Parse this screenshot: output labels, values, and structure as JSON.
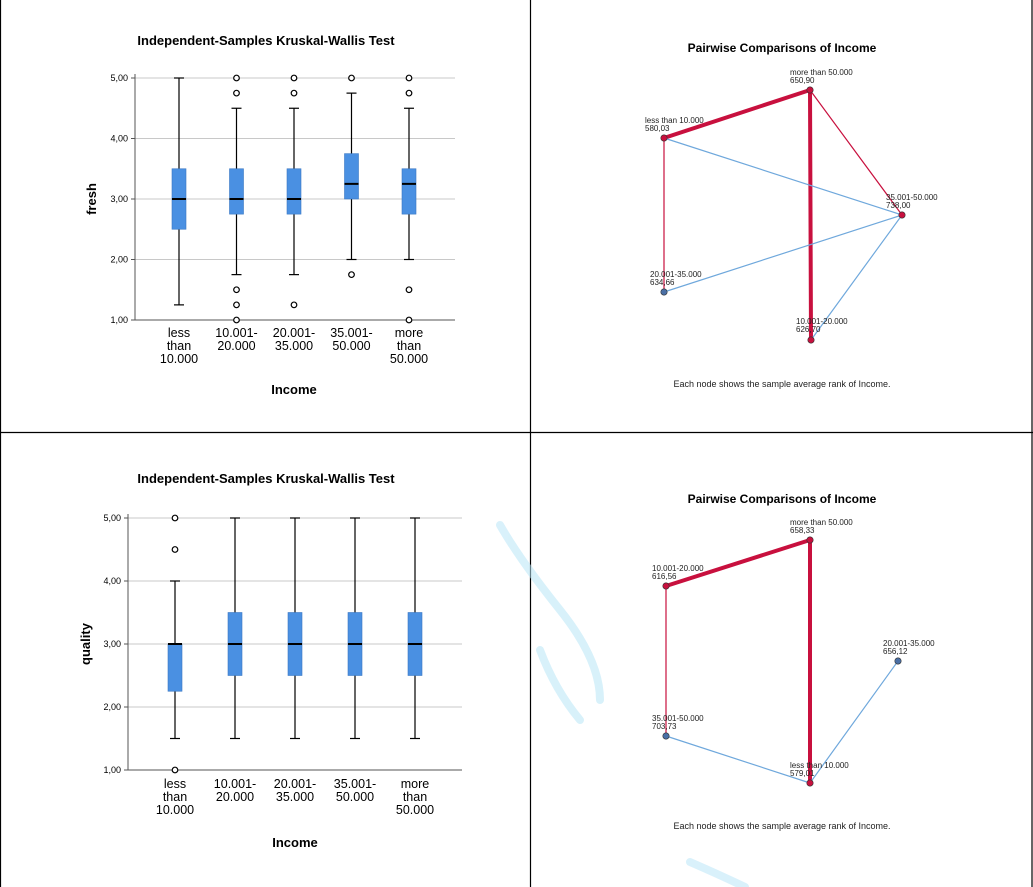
{
  "chart_data": [
    {
      "type": "boxplot",
      "title": "Independent-Samples Kruskal-Wallis Test",
      "xlabel": "Income",
      "ylabel": "fresh",
      "ylim": [
        1,
        5
      ],
      "yticks": [
        "1,00",
        "2,00",
        "3,00",
        "4,00",
        "5,00"
      ],
      "grid": true,
      "box_color": "#4a90e2",
      "categories": [
        [
          "less",
          "than",
          "10.000"
        ],
        [
          "10.001-",
          "20.000"
        ],
        [
          "20.001-",
          "35.000"
        ],
        [
          "35.001-",
          "50.000"
        ],
        [
          "more",
          "than",
          "50.000"
        ]
      ],
      "boxes": [
        {
          "whisker_low": 1.25,
          "q1": 2.5,
          "median": 3.0,
          "q3": 3.5,
          "whisker_high": 5.0,
          "outliers": []
        },
        {
          "whisker_low": 1.75,
          "q1": 2.75,
          "median": 3.0,
          "q3": 3.5,
          "whisker_high": 4.5,
          "outliers": [
            1.0,
            1.25,
            1.5,
            4.75,
            5.0
          ]
        },
        {
          "whisker_low": 1.75,
          "q1": 2.75,
          "median": 3.0,
          "q3": 3.5,
          "whisker_high": 4.5,
          "outliers": [
            1.25,
            4.75,
            5.0
          ]
        },
        {
          "whisker_low": 2.0,
          "q1": 3.0,
          "median": 3.25,
          "q3": 3.75,
          "whisker_high": 4.75,
          "outliers": [
            1.75,
            5.0
          ]
        },
        {
          "whisker_low": 2.0,
          "q1": 2.75,
          "median": 3.25,
          "q3": 3.5,
          "whisker_high": 4.5,
          "outliers": [
            1.0,
            1.5,
            4.75,
            5.0
          ]
        }
      ]
    },
    {
      "type": "network",
      "title": "Pairwise Comparisons of Income",
      "footnote": "Each node shows the sample average rank of Income.",
      "nodes": [
        {
          "id": "lt10",
          "label": "less than 10.000",
          "rank": "580,03"
        },
        {
          "id": "gt50",
          "label": "more than 50.000",
          "rank": "650,90"
        },
        {
          "id": "35to50",
          "label": "35.001-50.000",
          "rank": "738,00"
        },
        {
          "id": "20to35",
          "label": "20.001-35.000",
          "rank": "634,66"
        },
        {
          "id": "10to20",
          "label": "10.001-20.000",
          "rank": "626,70"
        }
      ],
      "edges": [
        {
          "from": "lt10",
          "to": "gt50",
          "color": "red",
          "weight": "thick"
        },
        {
          "from": "gt50",
          "to": "10to20",
          "color": "red",
          "weight": "thick"
        },
        {
          "from": "gt50",
          "to": "35to50",
          "color": "red",
          "weight": "thin"
        },
        {
          "from": "lt10",
          "to": "20to35",
          "color": "red",
          "weight": "thin"
        },
        {
          "from": "lt10",
          "to": "35to50",
          "color": "blue",
          "weight": "thin"
        },
        {
          "from": "20to35",
          "to": "35to50",
          "color": "blue",
          "weight": "thin"
        },
        {
          "from": "10to20",
          "to": "35to50",
          "color": "blue",
          "weight": "thin"
        }
      ]
    },
    {
      "type": "boxplot",
      "title": "Independent-Samples Kruskal-Wallis Test",
      "xlabel": "Income",
      "ylabel": "quality",
      "ylim": [
        1,
        5
      ],
      "yticks": [
        "1,00",
        "2,00",
        "3,00",
        "4,00",
        "5,00"
      ],
      "grid": true,
      "box_color": "#4a90e2",
      "categories": [
        [
          "less",
          "than",
          "10.000"
        ],
        [
          "10.001-",
          "20.000"
        ],
        [
          "20.001-",
          "35.000"
        ],
        [
          "35.001-",
          "50.000"
        ],
        [
          "more",
          "than",
          "50.000"
        ]
      ],
      "boxes": [
        {
          "whisker_low": 1.5,
          "q1": 2.25,
          "median": 3.0,
          "q3": 3.0,
          "whisker_high": 4.0,
          "outliers": [
            1.0,
            4.5,
            5.0
          ]
        },
        {
          "whisker_low": 1.5,
          "q1": 2.5,
          "median": 3.0,
          "q3": 3.5,
          "whisker_high": 5.0,
          "outliers": []
        },
        {
          "whisker_low": 1.5,
          "q1": 2.5,
          "median": 3.0,
          "q3": 3.5,
          "whisker_high": 5.0,
          "outliers": []
        },
        {
          "whisker_low": 1.5,
          "q1": 2.5,
          "median": 3.0,
          "q3": 3.5,
          "whisker_high": 5.0,
          "outliers": []
        },
        {
          "whisker_low": 1.5,
          "q1": 2.5,
          "median": 3.0,
          "q3": 3.5,
          "whisker_high": 5.0,
          "outliers": []
        }
      ]
    },
    {
      "type": "network",
      "title": "Pairwise Comparisons of Income",
      "footnote": "Each node shows the sample average rank of Income.",
      "nodes": [
        {
          "id": "10to20",
          "label": "10.001-20.000",
          "rank": "616,56"
        },
        {
          "id": "gt50",
          "label": "more than 50.000",
          "rank": "658,33"
        },
        {
          "id": "20to35",
          "label": "20.001-35.000",
          "rank": "656,12"
        },
        {
          "id": "35to50",
          "label": "35.001-50.000",
          "rank": "703,73"
        },
        {
          "id": "lt10",
          "label": "less than 10.000",
          "rank": "579,01"
        }
      ],
      "edges": [
        {
          "from": "10to20",
          "to": "gt50",
          "color": "red",
          "weight": "thick"
        },
        {
          "from": "gt50",
          "to": "lt10",
          "color": "red",
          "weight": "thick"
        },
        {
          "from": "10to20",
          "to": "35to50",
          "color": "red",
          "weight": "thin"
        },
        {
          "from": "35to50",
          "to": "lt10",
          "color": "blue",
          "weight": "thin"
        },
        {
          "from": "lt10",
          "to": "20to35",
          "color": "blue",
          "weight": "thin"
        }
      ]
    }
  ]
}
